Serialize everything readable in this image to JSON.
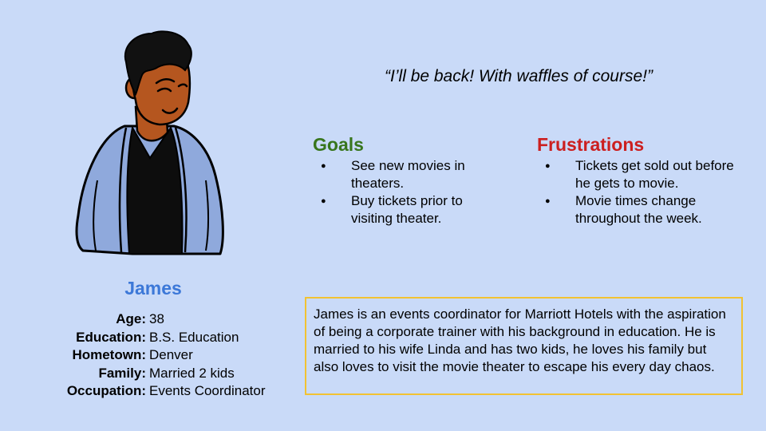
{
  "persona": {
    "name": "James",
    "details": [
      {
        "label": "Age:",
        "value": "38"
      },
      {
        "label": "Education:",
        "value": "B.S. Education"
      },
      {
        "label": "Hometown:",
        "value": "Denver"
      },
      {
        "label": "Family:",
        "value": "Married 2 kids"
      },
      {
        "label": "Occupation:",
        "value": "Events Coordinator"
      }
    ],
    "quote": "“I’ll be back! With waffles of course!”",
    "goals": {
      "title": "Goals",
      "items": [
        "See new movies in theaters.",
        "Buy tickets prior to visiting theater."
      ]
    },
    "frustrations": {
      "title": "Frustrations",
      "items": [
        "Tickets get sold out before he gets to movie.",
        "Movie times change throughout the week."
      ]
    },
    "bio": "James is an events coordinator for Marriott Hotels with the aspiration of being a corporate trainer with his background in education. He is married to his wife Linda and has two kids, he loves his family but also loves to visit the movie theater to escape his every day chaos."
  },
  "colors": {
    "background": "#c9daf8",
    "name": "#3c78d8",
    "goals_title": "#38761d",
    "frustrations_title": "#cc1f1f",
    "bio_border": "#f1c232",
    "jacket": "#8fa9dc",
    "skin": "#b5561f",
    "hair": "#111111"
  },
  "icons": {
    "avatar": "person-illustration"
  }
}
